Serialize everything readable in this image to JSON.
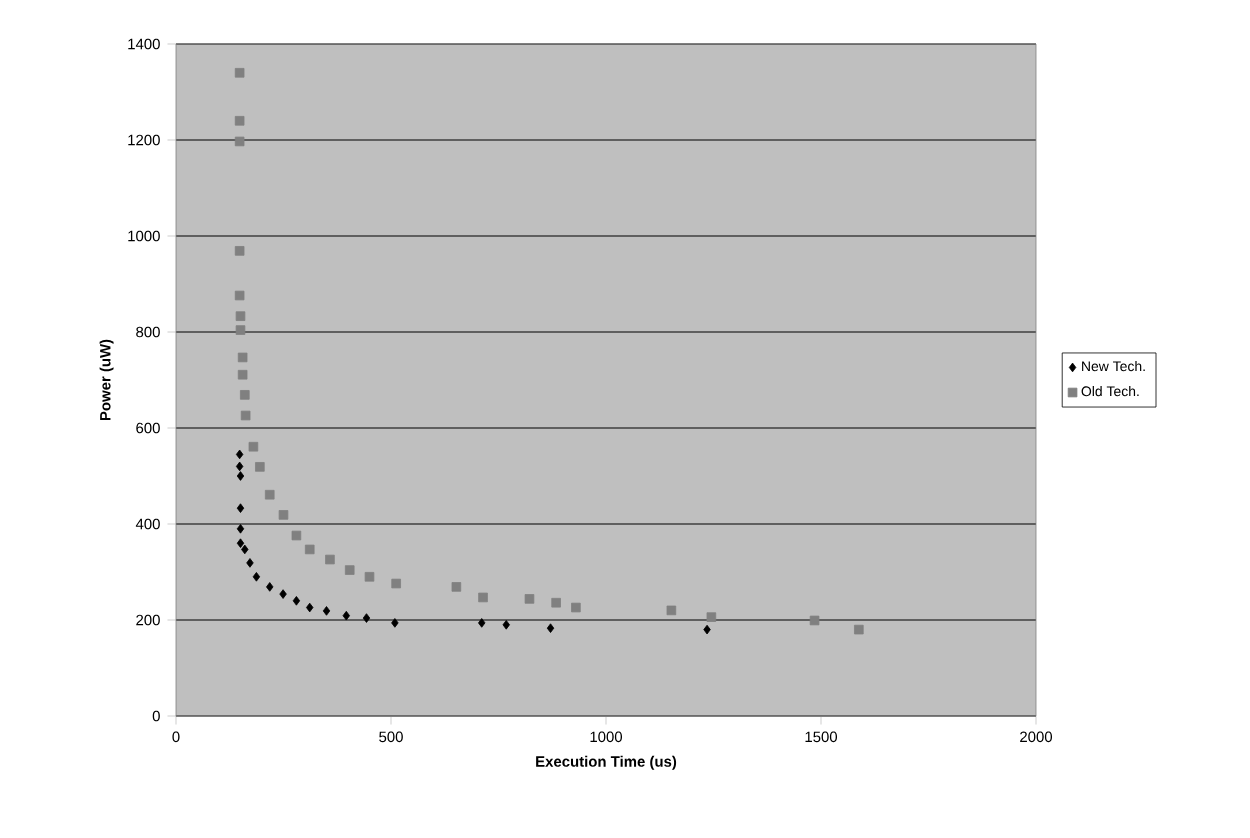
{
  "chart_data": {
    "type": "scatter",
    "xlabel": "Execution Time (us)",
    "ylabel": "Power (uW)",
    "xlim": [
      0,
      2000
    ],
    "xticks": [
      0,
      500,
      1000,
      1500,
      2000
    ],
    "ylim": [
      0,
      1400
    ],
    "yticks": [
      0,
      200,
      400,
      600,
      800,
      1000,
      1200,
      1400
    ],
    "grid": "y",
    "legend": "right",
    "series": [
      {
        "name": "New Tech.",
        "color": "#000000",
        "marker": "diamond",
        "x": [
          148,
          148,
          150,
          150,
          150,
          150,
          160,
          172,
          187,
          218,
          249,
          280,
          311,
          350,
          396,
          443,
          509,
          711,
          768,
          871,
          1235
        ],
        "values": [
          545,
          520,
          500,
          433,
          390,
          360,
          347,
          319,
          290,
          269,
          254,
          240,
          226,
          219,
          209,
          204,
          194,
          194,
          190,
          183,
          180
        ]
      },
      {
        "name": "Old Tech.",
        "color": "#808080",
        "marker": "square",
        "x": [
          148,
          148,
          148,
          148,
          148,
          150,
          150,
          155,
          155,
          160,
          162,
          180,
          195,
          218,
          250,
          280,
          311,
          358,
          404,
          450,
          512,
          652,
          714,
          822,
          884,
          930,
          1152,
          1245,
          1485,
          1588
        ],
        "values": [
          1340,
          1240,
          1197,
          969,
          876,
          833,
          804,
          747,
          711,
          669,
          626,
          561,
          519,
          461,
          419,
          376,
          347,
          326,
          304,
          290,
          276,
          269,
          247,
          244,
          236,
          226,
          220,
          206,
          199,
          180
        ]
      }
    ]
  }
}
